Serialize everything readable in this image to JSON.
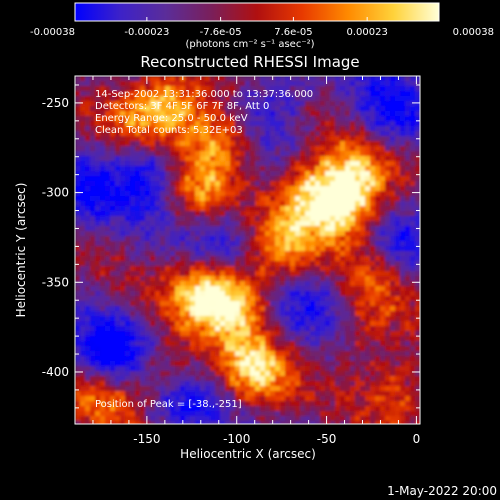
{
  "colorbar": {
    "ticks": [
      "-0.00038",
      "-0.00023",
      "-7.6e-05",
      "7.6e-05",
      "0.00023",
      "0.00038"
    ],
    "tick_values": [
      -0.00038,
      -0.00023,
      -7.6e-05,
      7.6e-05,
      0.00023,
      0.00038
    ],
    "range": [
      -0.00038,
      0.00038
    ],
    "units": "(photons cm⁻² s⁻¹ asec⁻²)",
    "colors": [
      "#0000ff",
      "#3d22c8",
      "#5b2d99",
      "#7a1f5a",
      "#b01010",
      "#e83a00",
      "#ff8a00",
      "#ffd23a",
      "#ffffd8"
    ]
  },
  "image_info": {
    "time_range": "14-Sep-2002 13:31:36.000 to 13:37:36.000",
    "detectors": "Detectors: 3F 4F 5F 6F 7F 8F, Att 0",
    "energy_range": "Energy Range: 25.0 - 50.0 keV",
    "clean_counts": "Clean    Total counts: 5.32E+03",
    "peak": "Position of Peak = [-38.,-251]"
  },
  "footer": {
    "date": "1-May-2022 20:00"
  },
  "chart_data": {
    "type": "heatmap",
    "title": "Reconstructed RHESSI Image",
    "xlabel": "Heliocentric X (arcsec)",
    "ylabel": "Heliocentric Y (arcsec)",
    "xlim": [
      -190,
      2
    ],
    "ylim": [
      -429,
      -235
    ],
    "x_ticks": [
      "-150",
      "-100",
      "-50",
      "0"
    ],
    "x_tick_values": [
      -150,
      -100,
      -50,
      0
    ],
    "y_ticks": [
      "-250",
      "-300",
      "-350",
      "-400"
    ],
    "y_tick_values": [
      -250,
      -300,
      -350,
      -400
    ],
    "peak_position": [
      -38,
      -251
    ],
    "bright_features": [
      {
        "x": -140,
        "y": -400,
        "level": 0.5
      },
      {
        "x": -120,
        "y": -355,
        "level": 0.85
      },
      {
        "x": -100,
        "y": -360,
        "level": 0.9
      },
      {
        "x": -95,
        "y": -395,
        "level": 0.55
      },
      {
        "x": -75,
        "y": -330,
        "level": 0.7
      },
      {
        "x": -60,
        "y": -300,
        "level": 0.85
      },
      {
        "x": -40,
        "y": -310,
        "level": 0.95
      },
      {
        "x": -35,
        "y": -290,
        "level": 0.8
      },
      {
        "x": -20,
        "y": -345,
        "level": 0.5
      },
      {
        "x": -120,
        "y": -300,
        "level": 0.6
      },
      {
        "x": -110,
        "y": -270,
        "level": 0.8
      },
      {
        "x": -135,
        "y": -250,
        "level": 0.85
      },
      {
        "x": -155,
        "y": -255,
        "level": 0.55
      },
      {
        "x": -30,
        "y": -380,
        "level": 0.4
      },
      {
        "x": -10,
        "y": -410,
        "level": 0.6
      },
      {
        "x": -175,
        "y": -415,
        "level": 0.6
      },
      {
        "x": -85,
        "y": -405,
        "level": 0.5
      }
    ],
    "dim_features": [
      {
        "x": -185,
        "y": -300,
        "level": -0.5
      },
      {
        "x": -170,
        "y": -390,
        "level": -0.9
      },
      {
        "x": -150,
        "y": -290,
        "level": -0.7
      },
      {
        "x": -105,
        "y": -325,
        "level": -0.5
      },
      {
        "x": -80,
        "y": -250,
        "level": -0.55
      },
      {
        "x": -15,
        "y": -255,
        "level": -0.6
      },
      {
        "x": -10,
        "y": -330,
        "level": -0.5
      },
      {
        "x": -60,
        "y": -360,
        "level": -0.45
      },
      {
        "x": -130,
        "y": -420,
        "level": -0.6
      }
    ],
    "grid": false
  }
}
